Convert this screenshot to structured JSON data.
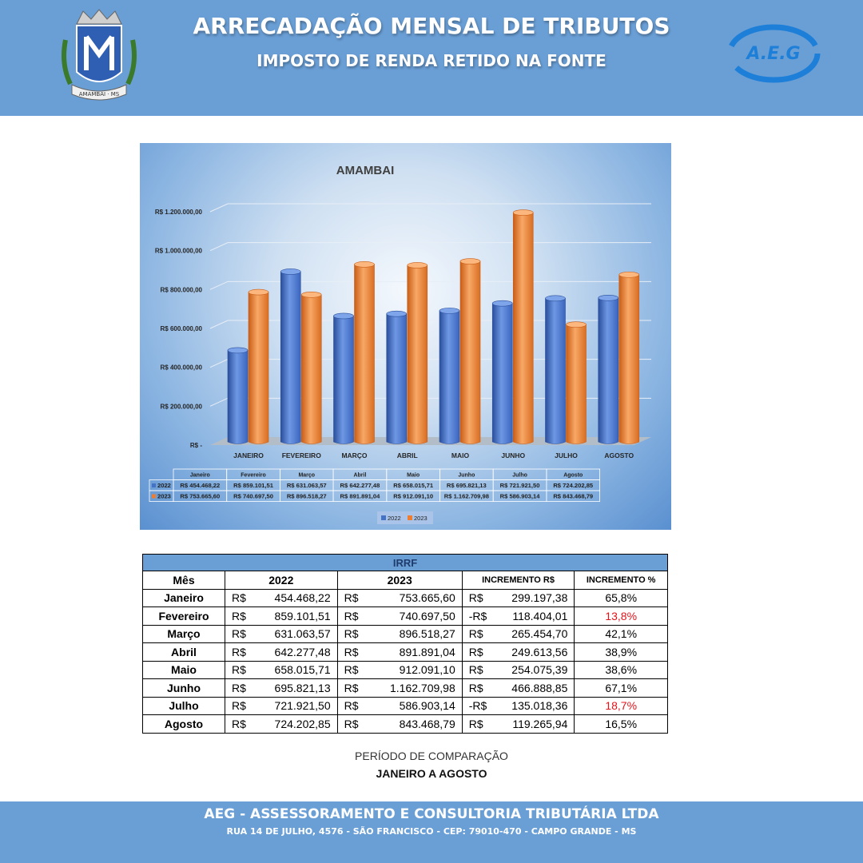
{
  "header": {
    "title": "ARRECADAÇÃO MENSAL DE TRIBUTOS",
    "subtitle": "IMPOSTO DE RENDA RETIDO NA FONTE",
    "crest_icon": "municipal-crest-icon",
    "crest_motto": "AMAMBAI · MS",
    "logo_text": "A.E.G"
  },
  "chart_data": {
    "type": "bar",
    "title": "AMAMBAI",
    "categories": [
      "JANEIRO",
      "FEVEREIRO",
      "MARÇO",
      "ABRIL",
      "MAIO",
      "JUNHO",
      "JULHO",
      "AGOSTO"
    ],
    "table_categories": [
      "Janeiro",
      "Fevereiro",
      "Março",
      "Abril",
      "Maio",
      "Junho",
      "Julho",
      "Agosto"
    ],
    "series": [
      {
        "name": "2022",
        "color": "#4472c4",
        "values": [
          454468.22,
          859101.51,
          631063.57,
          642277.48,
          658015.71,
          695821.13,
          721921.5,
          724202.85
        ],
        "labels": [
          "R$ 454.468,22",
          "R$ 859.101,51",
          "R$ 631.063,57",
          "R$ 642.277,48",
          "R$ 658.015,71",
          "R$ 695.821,13",
          "R$ 721.921,50",
          "R$ 724.202,85"
        ]
      },
      {
        "name": "2023",
        "color": "#ed7d31",
        "values": [
          753665.6,
          740697.5,
          896518.27,
          891891.04,
          912091.1,
          1162709.98,
          586903.14,
          843468.79
        ],
        "labels": [
          "R$ 753.665,60",
          "R$ 740.697,50",
          "R$ 896.518,27",
          "R$ 891.891,04",
          "R$ 912.091,10",
          "R$ 1.162.709,98",
          "R$ 586.903,14",
          "R$ 843.468,79"
        ]
      }
    ],
    "ylim": [
      0,
      1200000
    ],
    "yticks": [
      0,
      200000,
      400000,
      600000,
      800000,
      1000000,
      1200000
    ],
    "ytick_labels": [
      "R$ -",
      "R$ 200.000,00",
      "R$ 400.000,00",
      "R$ 600.000,00",
      "R$ 800.000,00",
      "R$ 1.000.000,00",
      "R$ 1.200.000,00"
    ],
    "grid": true,
    "legend": "bottom"
  },
  "table": {
    "caption": "IRRF",
    "headers": {
      "month": "Mês",
      "y2022": "2022",
      "y2023": "2023",
      "inc": "INCREMENTO R$",
      "pct": "INCREMENTO %"
    },
    "rows": [
      {
        "month": "Janeiro",
        "c1": "R$",
        "v1": "454.468,22",
        "c2": "R$",
        "v2": "753.665,60",
        "c3": "R$",
        "v3": "299.197,38",
        "pct": "65,8%",
        "neg": false
      },
      {
        "month": "Fevereiro",
        "c1": "R$",
        "v1": "859.101,51",
        "c2": "R$",
        "v2": "740.697,50",
        "c3": "-R$",
        "v3": "118.404,01",
        "pct": "13,8%",
        "neg": true
      },
      {
        "month": "Março",
        "c1": "R$",
        "v1": "631.063,57",
        "c2": "R$",
        "v2": "896.518,27",
        "c3": "R$",
        "v3": "265.454,70",
        "pct": "42,1%",
        "neg": false
      },
      {
        "month": "Abril",
        "c1": "R$",
        "v1": "642.277,48",
        "c2": "R$",
        "v2": "891.891,04",
        "c3": "R$",
        "v3": "249.613,56",
        "pct": "38,9%",
        "neg": false
      },
      {
        "month": "Maio",
        "c1": "R$",
        "v1": "658.015,71",
        "c2": "R$",
        "v2": "912.091,10",
        "c3": "R$",
        "v3": "254.075,39",
        "pct": "38,6%",
        "neg": false
      },
      {
        "month": "Junho",
        "c1": "R$",
        "v1": "695.821,13",
        "c2": "R$",
        "v2": "1.162.709,98",
        "c3": "R$",
        "v3": "466.888,85",
        "pct": "67,1%",
        "neg": false
      },
      {
        "month": "Julho",
        "c1": "R$",
        "v1": "721.921,50",
        "c2": "R$",
        "v2": "586.903,14",
        "c3": "-R$",
        "v3": "135.018,36",
        "pct": "18,7%",
        "neg": true
      },
      {
        "month": "Agosto",
        "c1": "R$",
        "v1": "724.202,85",
        "c2": "R$",
        "v2": "843.468,79",
        "c3": "R$",
        "v3": "119.265,94",
        "pct": "16,5%",
        "neg": false
      }
    ],
    "negative_color": "#e0151b"
  },
  "period": {
    "label": "PERÍODO DE COMPARAÇÃO",
    "value": "JANEIRO A AGOSTO"
  },
  "footer": {
    "company": "AEG - ASSESSORAMENTO E CONSULTORIA TRIBUTÁRIA LTDA",
    "address": "RUA 14 DE JULHO, 4576 - SÃO FRANCISCO - CEP: 79010-470 - CAMPO GRANDE - MS"
  }
}
